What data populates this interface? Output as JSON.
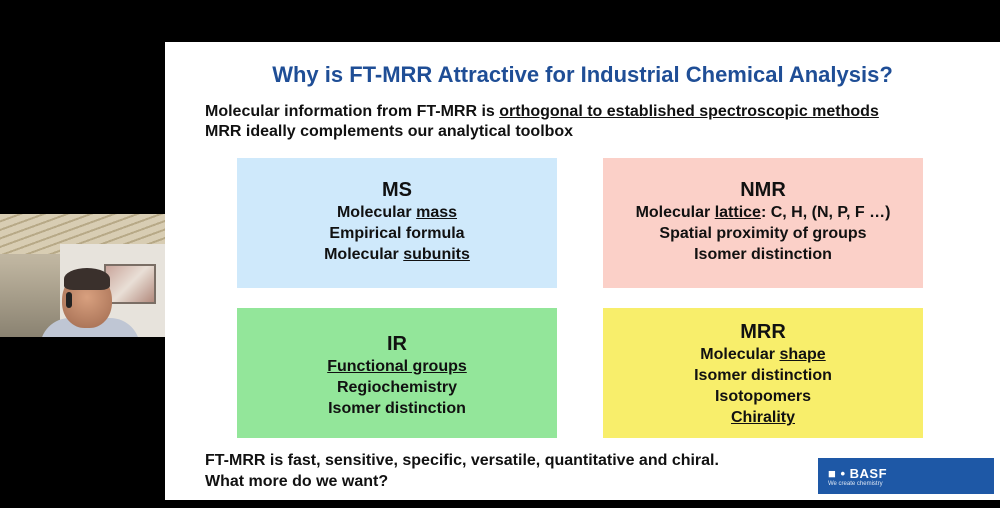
{
  "slide": {
    "title": "Why is FT-MRR Attractive for Industrial Chemical Analysis?",
    "intro": {
      "line1_prefix": "Molecular information from FT-MRR is ",
      "line1_underlined": "orthogonal to established spectroscopic methods",
      "line2": "MRR ideally complements our analytical toolbox"
    },
    "boxes": {
      "ms": {
        "title": "MS",
        "l1a": "Molecular ",
        "l1b": "mass",
        "l2": "Empirical formula",
        "l3a": "Molecular ",
        "l3b": "subunits",
        "color": "#cfe9fb"
      },
      "nmr": {
        "title": "NMR",
        "l1a": "Molecular ",
        "l1b": "lattice",
        "l1c": ": C, H, (N, P, F …)",
        "l2": "Spatial proximity of groups",
        "l3": "Isomer distinction",
        "color": "#fbd0c8"
      },
      "ir": {
        "title": "IR",
        "l1": "Functional groups",
        "l2": "Regiochemistry",
        "l3": "Isomer distinction",
        "color": "#93e69a"
      },
      "mrr": {
        "title": "MRR",
        "l1a": "Molecular ",
        "l1b": "shape",
        "l2": "Isomer distinction",
        "l3": "Isotopomers",
        "l4": "Chirality",
        "color": "#f8ee6b"
      }
    },
    "footer": {
      "line1": "FT-MRR is fast, sensitive, specific, versatile, quantitative and chiral.",
      "line2": "What more do we want?"
    },
    "logo": {
      "mark": "■ • BASF",
      "tagline": "We create chemistry",
      "color": "#1e58a6"
    },
    "title_color": "#1f4e96"
  }
}
